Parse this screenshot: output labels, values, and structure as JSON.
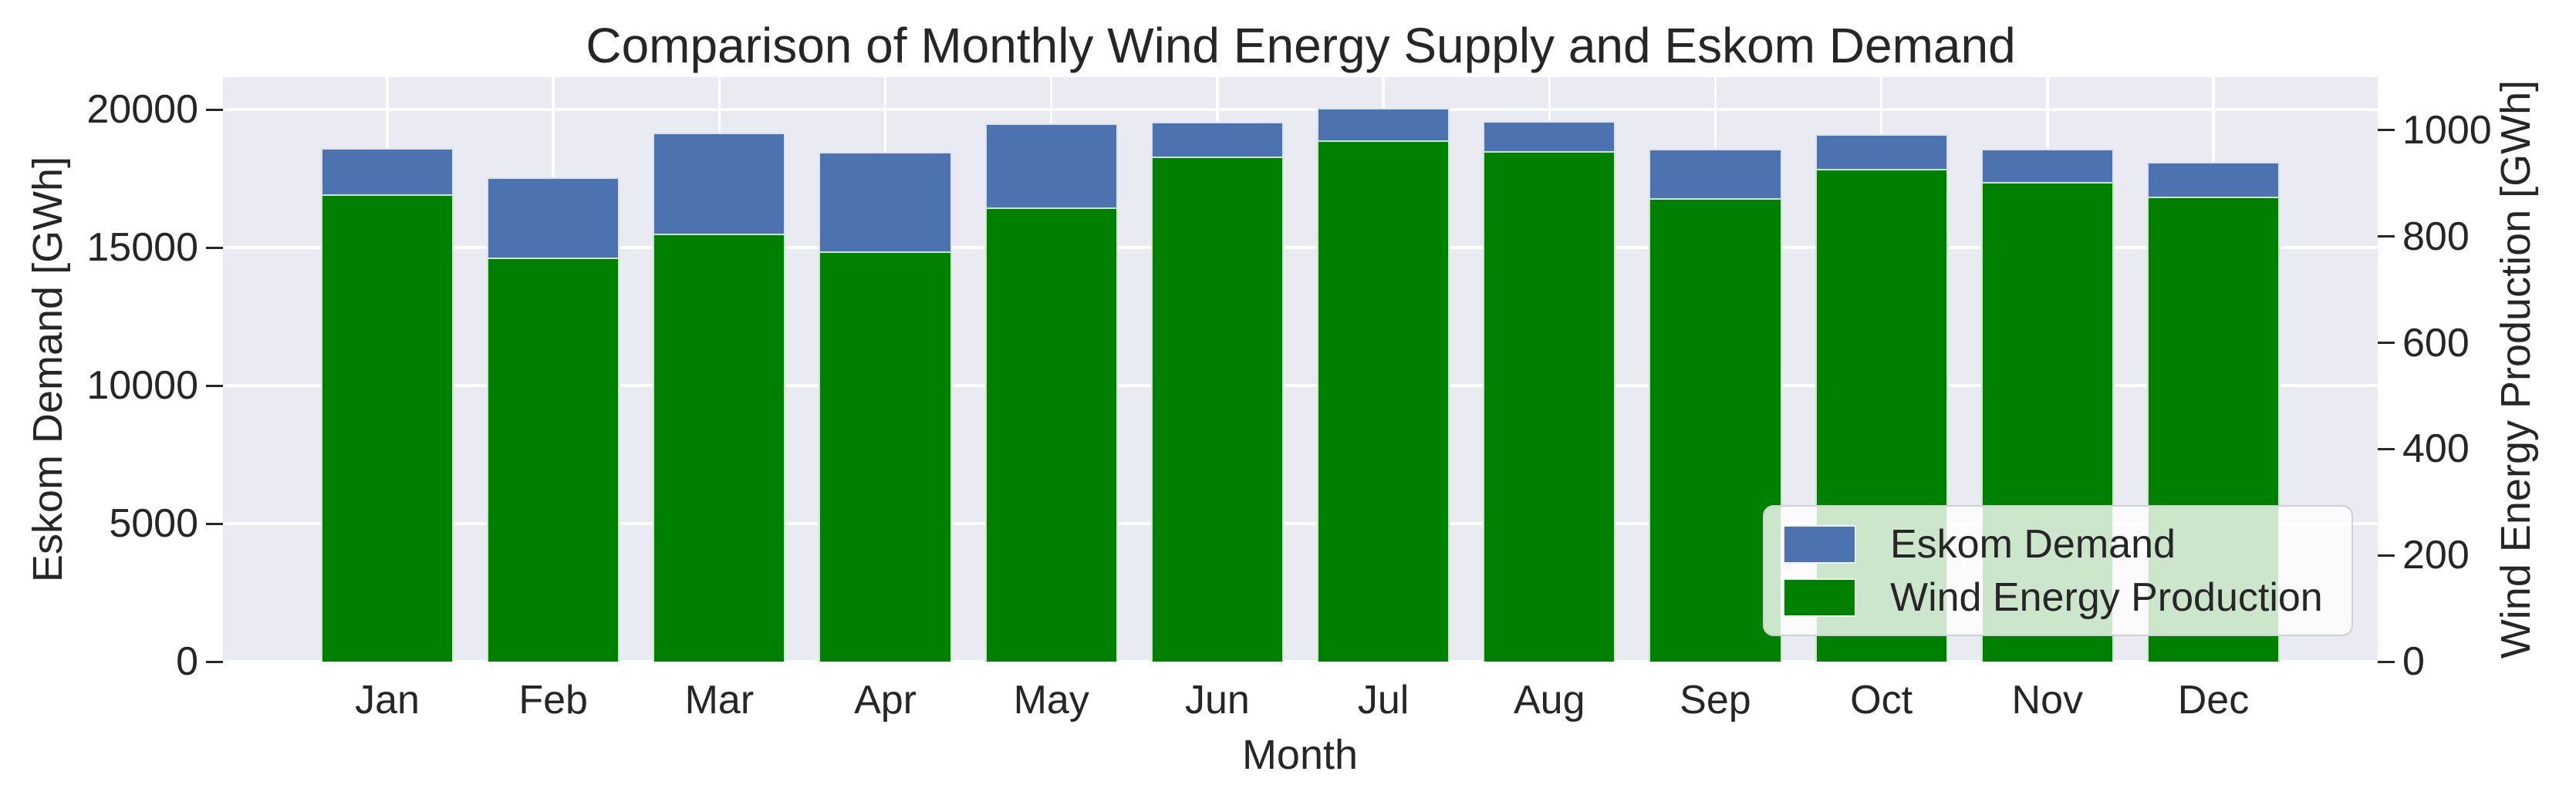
{
  "chart_data": {
    "type": "bar",
    "title": "Comparison of Monthly Wind Energy Supply and Eskom Demand",
    "categories": [
      "Jan",
      "Feb",
      "Mar",
      "Apr",
      "May",
      "Jun",
      "Jul",
      "Aug",
      "Sep",
      "Oct",
      "Nov",
      "Dec"
    ],
    "series": [
      {
        "name": "Eskom Demand",
        "yaxis": "left",
        "color": "#4C72B0",
        "values": [
          18600,
          17550,
          19150,
          18470,
          19510,
          19560,
          20060,
          19570,
          18580,
          19100,
          18580,
          18100
        ]
      },
      {
        "name": "Wind Energy Production",
        "yaxis": "right",
        "color": "#008000",
        "values": [
          880,
          760,
          805,
          772,
          855,
          950,
          981,
          960,
          872,
          928,
          903,
          875
        ]
      }
    ],
    "xlabel": "Month",
    "ylabel_left": "Eskom Demand [GWh]",
    "ylabel_right": "Wind Energy Production [GWh]",
    "ylim_left": [
      0,
      21175
    ],
    "ylim_right": [
      0,
      1100
    ],
    "yticks_left": [
      0,
      5000,
      10000,
      15000,
      20000
    ],
    "yticks_right": [
      0,
      200,
      400,
      600,
      800,
      1000
    ],
    "xlim_units": [
      -0.99,
      11.99
    ],
    "bar_width_fraction": 0.8,
    "grid": true,
    "legend_position": "lower right",
    "style": {
      "plot_bg": "#EAEAF2",
      "grid_color": "#ffffff",
      "text_color": "#262626",
      "bar_edge_color": "rgba(255,255,255,0.8)"
    }
  }
}
